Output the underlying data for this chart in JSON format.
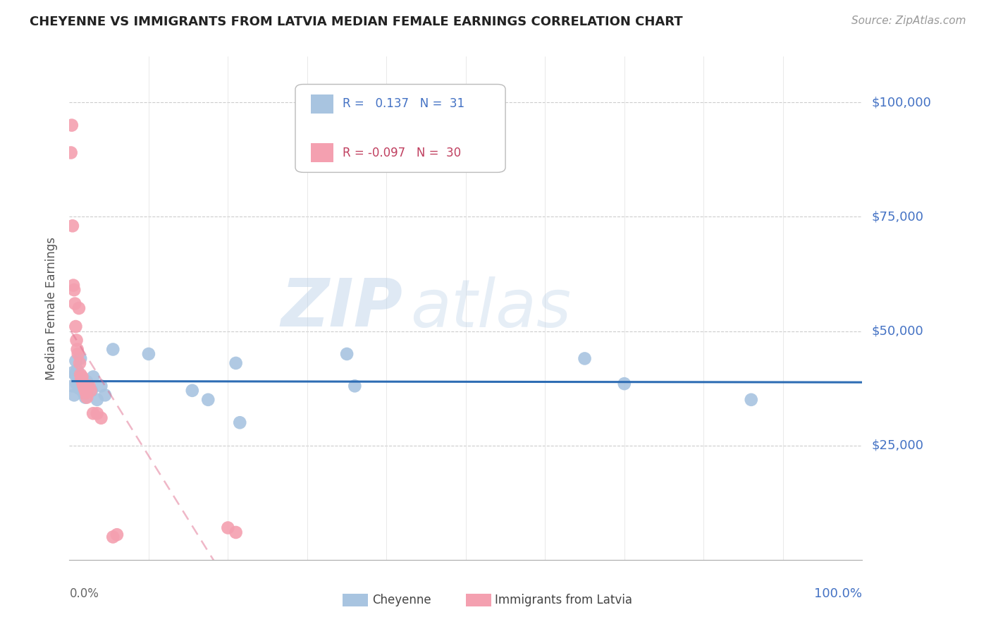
{
  "title": "CHEYENNE VS IMMIGRANTS FROM LATVIA MEDIAN FEMALE EARNINGS CORRELATION CHART",
  "source": "Source: ZipAtlas.com",
  "ylabel": "Median Female Earnings",
  "xlim": [
    0.0,
    1.0
  ],
  "ylim": [
    0,
    110000
  ],
  "cheyenne_color": "#a8c4e0",
  "latvia_color": "#f4a0b0",
  "trendline_cheyenne_color": "#2e6db4",
  "trendline_latvia_color": "#e07090",
  "watermark_zip": "ZIP",
  "watermark_atlas": "atlas",
  "cheyenne_points": [
    [
      0.004,
      38000
    ],
    [
      0.005,
      41000
    ],
    [
      0.006,
      36000
    ],
    [
      0.007,
      40500
    ],
    [
      0.008,
      43500
    ],
    [
      0.009,
      38500
    ],
    [
      0.01,
      41500
    ],
    [
      0.011,
      39500
    ],
    [
      0.012,
      37500
    ],
    [
      0.014,
      44000
    ],
    [
      0.016,
      38000
    ],
    [
      0.018,
      36500
    ],
    [
      0.02,
      35500
    ],
    [
      0.022,
      39000
    ],
    [
      0.024,
      38000
    ],
    [
      0.028,
      37000
    ],
    [
      0.03,
      40000
    ],
    [
      0.035,
      35000
    ],
    [
      0.04,
      38000
    ],
    [
      0.045,
      36000
    ],
    [
      0.055,
      46000
    ],
    [
      0.1,
      45000
    ],
    [
      0.155,
      37000
    ],
    [
      0.175,
      35000
    ],
    [
      0.21,
      43000
    ],
    [
      0.215,
      30000
    ],
    [
      0.35,
      45000
    ],
    [
      0.36,
      38000
    ],
    [
      0.65,
      44000
    ],
    [
      0.7,
      38500
    ],
    [
      0.86,
      35000
    ]
  ],
  "latvia_points": [
    [
      0.002,
      89000
    ],
    [
      0.003,
      95000
    ],
    [
      0.004,
      73000
    ],
    [
      0.005,
      60000
    ],
    [
      0.006,
      59000
    ],
    [
      0.007,
      56000
    ],
    [
      0.008,
      51000
    ],
    [
      0.009,
      48000
    ],
    [
      0.01,
      46000
    ],
    [
      0.011,
      45000
    ],
    [
      0.012,
      55000
    ],
    [
      0.013,
      43000
    ],
    [
      0.014,
      40500
    ],
    [
      0.015,
      39500
    ],
    [
      0.016,
      40000
    ],
    [
      0.017,
      38500
    ],
    [
      0.018,
      38000
    ],
    [
      0.019,
      37500
    ],
    [
      0.02,
      37000
    ],
    [
      0.021,
      36500
    ],
    [
      0.022,
      35500
    ],
    [
      0.025,
      38000
    ],
    [
      0.027,
      37000
    ],
    [
      0.03,
      32000
    ],
    [
      0.035,
      32000
    ],
    [
      0.04,
      31000
    ],
    [
      0.055,
      5000
    ],
    [
      0.06,
      5500
    ],
    [
      0.2,
      7000
    ],
    [
      0.21,
      6000
    ]
  ],
  "ytick_vals": [
    0,
    25000,
    50000,
    75000,
    100000
  ],
  "ytick_labels": [
    "",
    "$25,000",
    "$50,000",
    "$75,000",
    "$100,000"
  ]
}
